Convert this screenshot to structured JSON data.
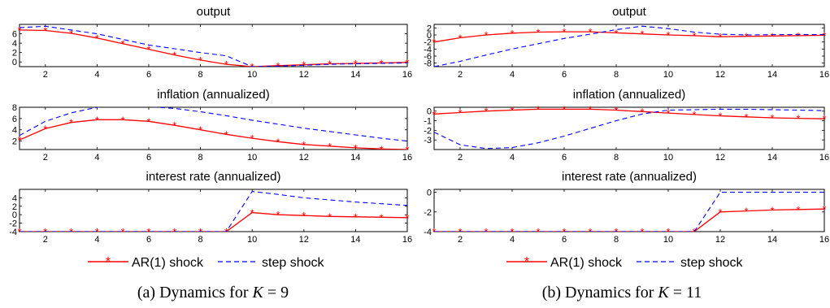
{
  "legend": {
    "ar1_label": "AR(1) shock",
    "step_label": "step shock"
  },
  "colors": {
    "ar1": "#ff0000",
    "step": "#0000ff",
    "axis": "#000000"
  },
  "chart_data": [
    {
      "type": "line",
      "panel": "a",
      "caption": {
        "prefix": "(a)  Dynamics for ",
        "var": "K",
        "suffix": " = 9"
      },
      "subplots": [
        {
          "title": "output",
          "xlim": [
            1,
            16
          ],
          "ylim": [
            -1,
            8
          ],
          "xticks": [
            2,
            4,
            6,
            8,
            10,
            12,
            14,
            16
          ],
          "yticks": [
            0,
            2,
            4,
            6
          ],
          "x": [
            1,
            2,
            3,
            4,
            5,
            6,
            7,
            8,
            9,
            10,
            11,
            12,
            13,
            14,
            15,
            16
          ],
          "series": [
            {
              "name": "AR(1) shock",
              "values": [
                6.8,
                6.7,
                6.1,
                5.1,
                3.9,
                2.7,
                1.5,
                0.4,
                -0.5,
                -1.0,
                -0.8,
                -0.6,
                -0.4,
                -0.3,
                -0.2,
                -0.1
              ]
            },
            {
              "name": "step shock",
              "values": [
                7.3,
                7.6,
                6.8,
                6.0,
                4.8,
                3.6,
                2.8,
                2.0,
                1.3,
                -1.0,
                -0.9,
                -0.7,
                -0.5,
                -0.4,
                -0.3,
                -0.2
              ]
            }
          ]
        },
        {
          "title": "inflation (annualized)",
          "xlim": [
            1,
            16
          ],
          "ylim": [
            0.5,
            8
          ],
          "xticks": [
            2,
            4,
            6,
            8,
            10,
            12,
            14,
            16
          ],
          "yticks": [
            2,
            4,
            6,
            8
          ],
          "x": [
            1,
            2,
            3,
            4,
            5,
            6,
            7,
            8,
            9,
            10,
            11,
            12,
            13,
            14,
            15,
            16
          ],
          "series": [
            {
              "name": "AR(1) shock",
              "values": [
                2.2,
                4.2,
                5.3,
                5.8,
                5.8,
                5.5,
                4.8,
                4.0,
                3.2,
                2.5,
                1.9,
                1.4,
                1.1,
                0.8,
                0.6,
                0.5
              ]
            },
            {
              "name": "step shock",
              "values": [
                3.0,
                5.5,
                7.0,
                8.0,
                8.2,
                8.1,
                7.8,
                7.2,
                6.5,
                5.7,
                5.0,
                4.3,
                3.7,
                3.1,
                2.5,
                2.0
              ]
            }
          ]
        },
        {
          "title": "interest rate (annualized)",
          "xlim": [
            1,
            16
          ],
          "ylim": [
            -4,
            6
          ],
          "xticks": [
            2,
            4,
            6,
            8,
            10,
            12,
            14,
            16
          ],
          "yticks": [
            -4,
            -2,
            0,
            2,
            4
          ],
          "x": [
            1,
            2,
            3,
            4,
            5,
            6,
            7,
            8,
            9,
            10,
            11,
            12,
            13,
            14,
            15,
            16
          ],
          "series": [
            {
              "name": "AR(1) shock",
              "values": [
                -4,
                -4,
                -4,
                -4,
                -4,
                -4,
                -4,
                -4,
                -4,
                0.5,
                0.0,
                -0.2,
                -0.4,
                -0.5,
                -0.6,
                -0.7
              ]
            },
            {
              "name": "step shock",
              "values": [
                -4,
                -4,
                -4,
                -4,
                -4,
                -4,
                -4,
                -4,
                -4,
                5.5,
                4.8,
                4.0,
                3.5,
                3.0,
                2.6,
                2.2
              ]
            }
          ]
        }
      ]
    },
    {
      "type": "line",
      "panel": "b",
      "caption": {
        "prefix": "(b)  Dynamics for ",
        "var": "K",
        "suffix": " = 11"
      },
      "subplots": [
        {
          "title": "output",
          "xlim": [
            1,
            16
          ],
          "ylim": [
            -9,
            3
          ],
          "xticks": [
            2,
            4,
            6,
            8,
            10,
            12,
            14,
            16
          ],
          "yticks": [
            -8,
            -6,
            -4,
            -2,
            0,
            2
          ],
          "x": [
            1,
            2,
            3,
            4,
            5,
            6,
            7,
            8,
            9,
            10,
            11,
            12,
            13,
            14,
            15,
            16
          ],
          "series": [
            {
              "name": "AR(1) shock",
              "values": [
                -2.0,
                -0.8,
                0.0,
                0.5,
                0.8,
                0.9,
                0.9,
                0.6,
                0.3,
                0.0,
                -0.2,
                -0.5,
                -0.4,
                -0.3,
                -0.2,
                -0.1
              ]
            },
            {
              "name": "step shock",
              "values": [
                -9.0,
                -7.5,
                -5.7,
                -4.0,
                -2.5,
                -1.0,
                0.2,
                1.5,
                2.5,
                1.8,
                0.8,
                0.2,
                0.0,
                0.1,
                0.1,
                0.1
              ]
            }
          ]
        },
        {
          "title": "inflation (annualized)",
          "xlim": [
            1,
            16
          ],
          "ylim": [
            -4,
            0.4
          ],
          "xticks": [
            2,
            4,
            6,
            8,
            10,
            12,
            14,
            16
          ],
          "yticks": [
            -3,
            -2,
            -1,
            0
          ],
          "x": [
            1,
            2,
            3,
            4,
            5,
            6,
            7,
            8,
            9,
            10,
            11,
            12,
            13,
            14,
            15,
            16
          ],
          "series": [
            {
              "name": "AR(1) shock",
              "values": [
                -0.3,
                -0.15,
                0.0,
                0.1,
                0.2,
                0.2,
                0.2,
                0.1,
                -0.05,
                -0.2,
                -0.35,
                -0.5,
                -0.6,
                -0.7,
                -0.75,
                -0.8
              ]
            },
            {
              "name": "step shock",
              "values": [
                -2.2,
                -3.5,
                -3.9,
                -3.8,
                -3.3,
                -2.6,
                -1.8,
                -1.0,
                -0.3,
                0.1,
                0.15,
                0.2,
                0.2,
                0.15,
                0.1,
                0.05
              ]
            }
          ]
        },
        {
          "title": "interest rate (annualized)",
          "xlim": [
            1,
            16
          ],
          "ylim": [
            -4,
            0.3
          ],
          "xticks": [
            2,
            4,
            6,
            8,
            10,
            12,
            14,
            16
          ],
          "yticks": [
            -4,
            -2,
            0
          ],
          "x": [
            1,
            2,
            3,
            4,
            5,
            6,
            7,
            8,
            9,
            10,
            11,
            12,
            13,
            14,
            15,
            16
          ],
          "series": [
            {
              "name": "AR(1) shock",
              "values": [
                -4,
                -4,
                -4,
                -4,
                -4,
                -4,
                -4,
                -4,
                -4,
                -4,
                -4,
                -2.0,
                -1.9,
                -1.8,
                -1.75,
                -1.7
              ]
            },
            {
              "name": "step shock",
              "values": [
                -4,
                -4,
                -4,
                -4,
                -4,
                -4,
                -4,
                -4,
                -4,
                -4,
                -4,
                0.0,
                0.0,
                0.0,
                0.0,
                0.0
              ]
            }
          ]
        }
      ]
    }
  ]
}
